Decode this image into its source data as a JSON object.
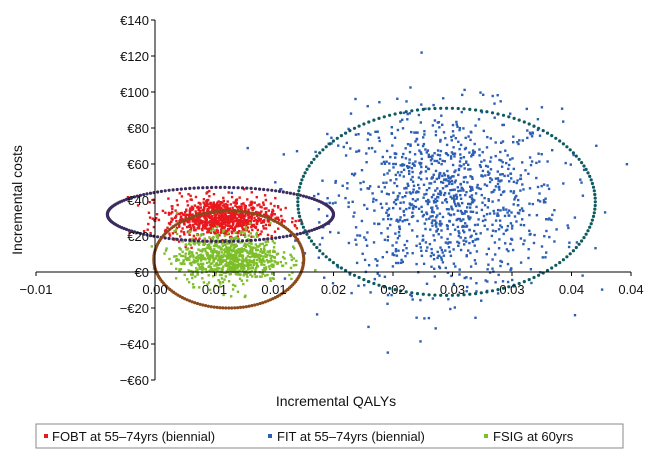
{
  "chart_data": {
    "type": "scatter",
    "title": "",
    "xlabel": "Incremental QALYs",
    "ylabel": "Incremental costs",
    "xlim": [
      -0.01,
      0.04
    ],
    "ylim": [
      -60,
      140
    ],
    "x_tick_labels": [
      "−0.01",
      "0.00",
      "0.01",
      "0.01",
      "0.02",
      "0.02",
      "0.03",
      "0.03",
      "0.04",
      "0.04"
    ],
    "y_tick_labels": [
      "−€60",
      "−€40",
      "−€20",
      "€0",
      "€20",
      "€40",
      "€60",
      "€80",
      "€100",
      "€120",
      "€140"
    ],
    "y_tick_values": [
      -60,
      -40,
      -20,
      0,
      20,
      40,
      60,
      80,
      100,
      120,
      140
    ],
    "grid": false,
    "legend_position": "bottom",
    "series": [
      {
        "name": "FOBT at 55–74yrs (biennial)",
        "color": "#e8191e",
        "mean_x": 0.0055,
        "mean_y": 30,
        "sd_x": 0.0023,
        "sd_y": 5.5,
        "n_points": 900,
        "ellipse": {
          "cx": 0.0055,
          "cy": 32,
          "rx": 0.0095,
          "ry": 15,
          "color": "#3a2b5e"
        }
      },
      {
        "name": "FIT at 55–74yrs (biennial)",
        "color": "#2d5fb4",
        "mean_x": 0.0245,
        "mean_y": 40,
        "sd_x": 0.0048,
        "sd_y": 25,
        "n_points": 1100,
        "ellipse": {
          "cx": 0.0245,
          "cy": 39,
          "rx": 0.0125,
          "ry": 52,
          "color": "#0e5a5e"
        }
      },
      {
        "name": "FSIG at 60yrs",
        "color": "#7dbf2a",
        "mean_x": 0.0062,
        "mean_y": 8,
        "sd_x": 0.0022,
        "sd_y": 7,
        "n_points": 800,
        "ellipse": {
          "cx": 0.0062,
          "cy": 7,
          "rx": 0.0063,
          "ry": 27,
          "color": "#8a4a1a"
        }
      }
    ]
  }
}
